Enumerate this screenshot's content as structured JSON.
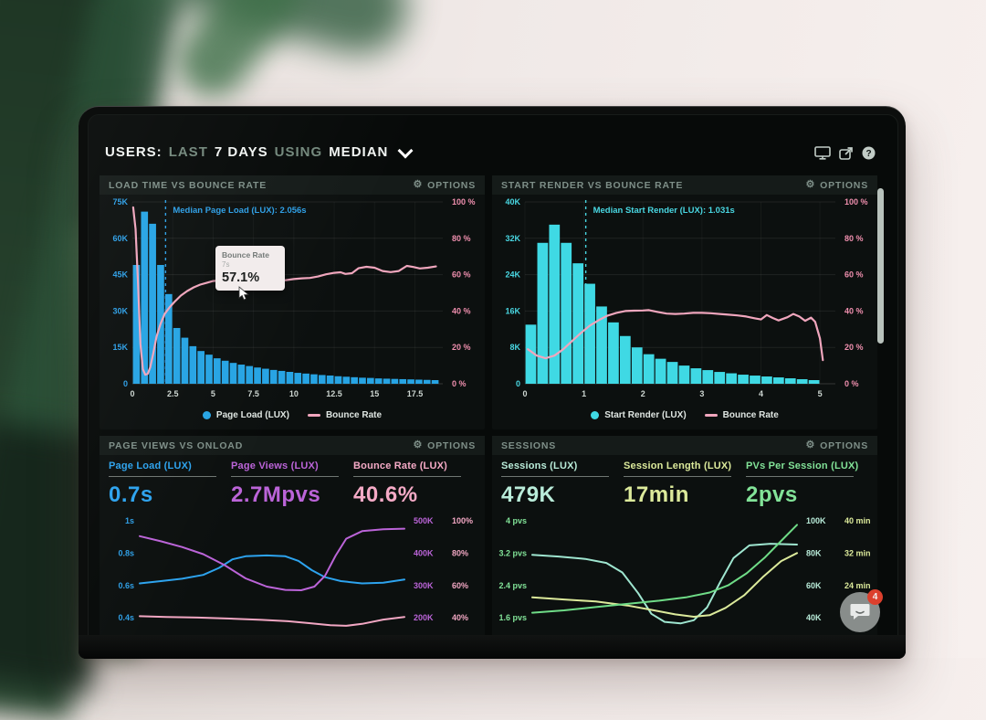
{
  "header": {
    "users": "USERS:",
    "last": "LAST",
    "days": "7 DAYS",
    "using": "USING",
    "median": "MEDIAN"
  },
  "top_icons": {
    "help_glyph": "?"
  },
  "panels": {
    "load_time": {
      "title": "LOAD TIME VS BOUNCE RATE",
      "options": "OPTIONS"
    },
    "start_render": {
      "title": "START RENDER VS BOUNCE RATE",
      "options": "OPTIONS"
    },
    "page_views": {
      "title": "PAGE VIEWS VS ONLOAD",
      "options": "OPTIONS",
      "metrics": [
        {
          "label": "Page Load (LUX)",
          "value": "0.7s",
          "color": "#2da3ee"
        },
        {
          "label": "Page Views (LUX)",
          "value": "2.7Mpvs",
          "color": "#bb64d8"
        },
        {
          "label": "Bounce Rate (LUX)",
          "value": "40.6%",
          "color": "#f5aac6"
        }
      ]
    },
    "sessions": {
      "title": "SESSIONS",
      "options": "OPTIONS",
      "metrics": [
        {
          "label": "Sessions (LUX)",
          "value": "479K",
          "color": "#b9ecd9"
        },
        {
          "label": "Session Length (LUX)",
          "value": "17min",
          "color": "#dcea9b"
        },
        {
          "label": "PVs Per Session (LUX)",
          "value": "2pvs",
          "color": "#82e398"
        }
      ]
    }
  },
  "tooltip": {
    "series": "Bounce Rate",
    "x": "7s",
    "value": "57.1%"
  },
  "chat": {
    "badge": "4"
  },
  "colors": {
    "bar_blue": "#27a4e4",
    "bar_cyan": "#3fd9e4",
    "bounce_pink": "#f0a6bd",
    "axis_blue": "#2e9fe6",
    "axis_cyan": "#49d7e2",
    "axis_pink": "#ef8fae"
  },
  "chart_data": [
    {
      "type": "bar+line",
      "title": "LOAD TIME VS BOUNCE RATE",
      "legend": [
        "Page Load (LUX)",
        "Bounce Rate"
      ],
      "x_max": 19,
      "bar_start": 0,
      "bar_width": 0.5,
      "bar_color": "#27a4e4",
      "line_color": "#f0a6bd",
      "axis_color_left": "#2e9fe6",
      "axis_color_right": "#ef8fae",
      "y_left": {
        "ticks": [
          "75K",
          "60K",
          "45K",
          "30K",
          "15K",
          "0"
        ],
        "max_k": 75
      },
      "y_right": {
        "ticks": [
          "100 %",
          "80 %",
          "60 %",
          "40 %",
          "20 %",
          "0 %"
        ],
        "max_pct": 100
      },
      "x_ticks": [
        0,
        2.5,
        5,
        7.5,
        10,
        12.5,
        15,
        17.5
      ],
      "bars_k": [
        49,
        71,
        66,
        49,
        37,
        23,
        19,
        15.5,
        13.5,
        12,
        10.5,
        9.5,
        8.6,
        7.9,
        7.3,
        6.7,
        6.2,
        5.7,
        5.3,
        4.9,
        4.5,
        4.2,
        3.9,
        3.6,
        3.4,
        3.1,
        2.9,
        2.7,
        2.5,
        2.4,
        2.2,
        2.1,
        2.0,
        1.9,
        1.8,
        1.7,
        1.6,
        1.5
      ],
      "bounce_pct": [
        [
          0.05,
          97
        ],
        [
          0.2,
          85
        ],
        [
          0.35,
          55
        ],
        [
          0.5,
          22
        ],
        [
          0.65,
          8
        ],
        [
          0.8,
          5
        ],
        [
          0.95,
          5.5
        ],
        [
          1.1,
          9
        ],
        [
          1.3,
          17
        ],
        [
          1.5,
          26
        ],
        [
          1.75,
          33
        ],
        [
          2.0,
          38.5
        ],
        [
          2.3,
          42
        ],
        [
          2.6,
          45
        ],
        [
          3.0,
          48.5
        ],
        [
          3.4,
          51
        ],
        [
          3.8,
          53
        ],
        [
          4.2,
          54.5
        ],
        [
          4.6,
          55.5
        ],
        [
          5.0,
          56.5
        ],
        [
          5.5,
          57
        ],
        [
          6.0,
          57.3
        ],
        [
          6.5,
          57.2
        ],
        [
          7.0,
          57.1
        ],
        [
          7.5,
          57.6
        ],
        [
          8.0,
          57.4
        ],
        [
          8.5,
          56.8
        ],
        [
          9.0,
          56.2
        ],
        [
          9.5,
          57
        ],
        [
          10.0,
          57.6
        ],
        [
          10.5,
          58
        ],
        [
          11.0,
          58.2
        ],
        [
          11.5,
          59
        ],
        [
          12.0,
          60.2
        ],
        [
          12.5,
          61
        ],
        [
          12.9,
          61.3
        ],
        [
          13.2,
          60.4
        ],
        [
          13.6,
          60.8
        ],
        [
          14.0,
          63.5
        ],
        [
          14.5,
          64.3
        ],
        [
          15.0,
          63.8
        ],
        [
          15.5,
          62
        ],
        [
          16.0,
          61.4
        ],
        [
          16.5,
          62
        ],
        [
          17.0,
          64.8
        ],
        [
          17.4,
          64.2
        ],
        [
          17.8,
          63.4
        ],
        [
          18.3,
          63.8
        ],
        [
          18.8,
          64.5
        ]
      ],
      "median": {
        "x": 2.056,
        "label": "Median Page Load (LUX): 2.056s"
      }
    },
    {
      "type": "bar+line",
      "title": "START RENDER VS BOUNCE RATE",
      "legend": [
        "Start Render (LUX)",
        "Bounce Rate"
      ],
      "x_max": 5.2,
      "bar_start": 0,
      "bar_width": 0.2,
      "bar_color": "#3fd9e4",
      "line_color": "#f0a6bd",
      "axis_color_left": "#49d7e2",
      "axis_color_right": "#ef8fae",
      "y_left": {
        "ticks": [
          "40K",
          "32K",
          "24K",
          "16K",
          "8K",
          "0"
        ],
        "max_k": 40
      },
      "y_right": {
        "ticks": [
          "100 %",
          "80 %",
          "60 %",
          "40 %",
          "20 %",
          "0 %"
        ],
        "max_pct": 100
      },
      "x_ticks": [
        0,
        1,
        2,
        3,
        4,
        5
      ],
      "bars_k": [
        13,
        31,
        35,
        31,
        26.5,
        22,
        17,
        13.5,
        10.5,
        8,
        6.5,
        5.5,
        4.8,
        4,
        3.4,
        3,
        2.6,
        2.3,
        2,
        1.8,
        1.6,
        1.4,
        1.2,
        1.0,
        0.8
      ],
      "bounce_pct": [
        [
          0.05,
          19
        ],
        [
          0.2,
          15.5
        ],
        [
          0.35,
          14
        ],
        [
          0.5,
          15.5
        ],
        [
          0.65,
          19
        ],
        [
          0.8,
          23.5
        ],
        [
          0.95,
          28
        ],
        [
          1.1,
          32
        ],
        [
          1.25,
          35
        ],
        [
          1.4,
          37.5
        ],
        [
          1.55,
          39
        ],
        [
          1.7,
          40
        ],
        [
          1.85,
          40.2
        ],
        [
          2.0,
          40.3
        ],
        [
          2.1,
          40.5
        ],
        [
          2.25,
          39.5
        ],
        [
          2.4,
          38.6
        ],
        [
          2.55,
          38.4
        ],
        [
          2.7,
          38.6
        ],
        [
          2.85,
          39
        ],
        [
          3.0,
          39
        ],
        [
          3.15,
          38.8
        ],
        [
          3.3,
          38.4
        ],
        [
          3.45,
          38
        ],
        [
          3.6,
          37.6
        ],
        [
          3.75,
          37
        ],
        [
          3.9,
          36
        ],
        [
          4.0,
          35.4
        ],
        [
          4.1,
          37.8
        ],
        [
          4.2,
          36.2
        ],
        [
          4.3,
          34.8
        ],
        [
          4.45,
          36.6
        ],
        [
          4.55,
          38.4
        ],
        [
          4.65,
          37
        ],
        [
          4.75,
          34.6
        ],
        [
          4.85,
          36.4
        ],
        [
          4.92,
          34
        ],
        [
          5.0,
          25
        ],
        [
          5.05,
          13
        ]
      ],
      "median": {
        "x": 1.031,
        "label": "Median Start Render (LUX): 1.031s"
      }
    },
    {
      "type": "line",
      "title": "PAGE VIEWS VS ONLOAD",
      "left_axis": {
        "ticks": [
          "1s",
          "0.8s",
          "0.6s",
          "0.4s"
        ],
        "color": "#2e9fe6"
      },
      "right_axes": [
        {
          "ticks": [
            "500K",
            "400K",
            "300K",
            "200K"
          ],
          "color": "#bb64d8"
        },
        {
          "ticks": [
            "100%",
            "80%",
            "60%",
            "40%"
          ],
          "color": "#f2a7c3"
        }
      ],
      "series": [
        {
          "name": "Page Load (LUX)",
          "unit": "s",
          "color": "#2da3ee",
          "min": 0.25,
          "max": 1.05,
          "points": [
            [
              0,
              0.6
            ],
            [
              8,
              0.615
            ],
            [
              16,
              0.63
            ],
            [
              24,
              0.655
            ],
            [
              30,
              0.7
            ],
            [
              35,
              0.755
            ],
            [
              40,
              0.775
            ],
            [
              48,
              0.78
            ],
            [
              55,
              0.775
            ],
            [
              60,
              0.745
            ],
            [
              65,
              0.685
            ],
            [
              70,
              0.64
            ],
            [
              76,
              0.615
            ],
            [
              84,
              0.6
            ],
            [
              92,
              0.605
            ],
            [
              100,
              0.625
            ]
          ]
        },
        {
          "name": "Page Views (LUX)",
          "unit": "K pvs",
          "color": "#bb64d8",
          "min": 180,
          "max": 525,
          "points": [
            [
              0,
              462
            ],
            [
              8,
              448
            ],
            [
              16,
              432
            ],
            [
              24,
              412
            ],
            [
              32,
              382
            ],
            [
              40,
              345
            ],
            [
              48,
              322
            ],
            [
              55,
              313
            ],
            [
              61,
              312
            ],
            [
              66,
              322
            ],
            [
              70,
              352
            ],
            [
              74,
              408
            ],
            [
              78,
              455
            ],
            [
              84,
              476
            ],
            [
              92,
              481
            ],
            [
              100,
              483
            ]
          ]
        },
        {
          "name": "Bounce Rate (LUX)",
          "unit": "%",
          "color": "#f2a7c3",
          "min": 28,
          "max": 103,
          "points": [
            [
              0,
              41
            ],
            [
              10,
              40.6
            ],
            [
              22,
              40.2
            ],
            [
              34,
              39.6
            ],
            [
              46,
              38.8
            ],
            [
              56,
              38
            ],
            [
              64,
              36.8
            ],
            [
              72,
              35.6
            ],
            [
              78,
              35.2
            ],
            [
              84,
              36.4
            ],
            [
              92,
              39
            ],
            [
              100,
              40.6
            ]
          ]
        }
      ]
    },
    {
      "type": "line",
      "title": "SESSIONS",
      "left_axis": {
        "ticks": [
          "4 pvs",
          "3.2 pvs",
          "2.4 pvs",
          "1.6 pvs"
        ],
        "color": "#82e398"
      },
      "right_axes": [
        {
          "ticks": [
            "100K",
            "80K",
            "60K",
            "40K"
          ],
          "color": "#b9ecd9"
        },
        {
          "ticks": [
            "40 min",
            "32 min",
            "24 min",
            ""
          ],
          "color": "#dcea9b"
        }
      ],
      "series": [
        {
          "name": "Sessions (LUX)",
          "unit": "K",
          "color": "#9fe6d0",
          "min": 27,
          "max": 105,
          "points": [
            [
              0,
              79
            ],
            [
              10,
              78
            ],
            [
              20,
              76.5
            ],
            [
              28,
              74
            ],
            [
              34,
              68
            ],
            [
              40,
              55
            ],
            [
              45,
              42
            ],
            [
              50,
              37
            ],
            [
              56,
              36
            ],
            [
              61,
              38
            ],
            [
              66,
              46
            ],
            [
              71,
              62
            ],
            [
              76,
              77
            ],
            [
              82,
              85
            ],
            [
              90,
              86
            ],
            [
              100,
              85.5
            ]
          ]
        },
        {
          "name": "Session Length (LUX)",
          "unit": "min",
          "color": "#dcea9b",
          "min": 11,
          "max": 41.8,
          "points": [
            [
              0,
              21
            ],
            [
              12,
              20.5
            ],
            [
              24,
              20
            ],
            [
              36,
              19
            ],
            [
              46,
              17.8
            ],
            [
              54,
              16.8
            ],
            [
              61,
              16.2
            ],
            [
              67,
              16.6
            ],
            [
              73,
              18.4
            ],
            [
              80,
              21.5
            ],
            [
              87,
              26
            ],
            [
              94,
              30
            ],
            [
              100,
              32
            ]
          ]
        },
        {
          "name": "PVs Per Session (LUX)",
          "unit": "pvs",
          "color": "#6fdc87",
          "min": 1.1,
          "max": 4.18,
          "points": [
            [
              0,
              1.72
            ],
            [
              12,
              1.78
            ],
            [
              24,
              1.86
            ],
            [
              36,
              1.94
            ],
            [
              48,
              2.02
            ],
            [
              58,
              2.1
            ],
            [
              67,
              2.22
            ],
            [
              74,
              2.4
            ],
            [
              81,
              2.7
            ],
            [
              88,
              3.1
            ],
            [
              94,
              3.5
            ],
            [
              100,
              3.9
            ]
          ]
        }
      ]
    }
  ]
}
